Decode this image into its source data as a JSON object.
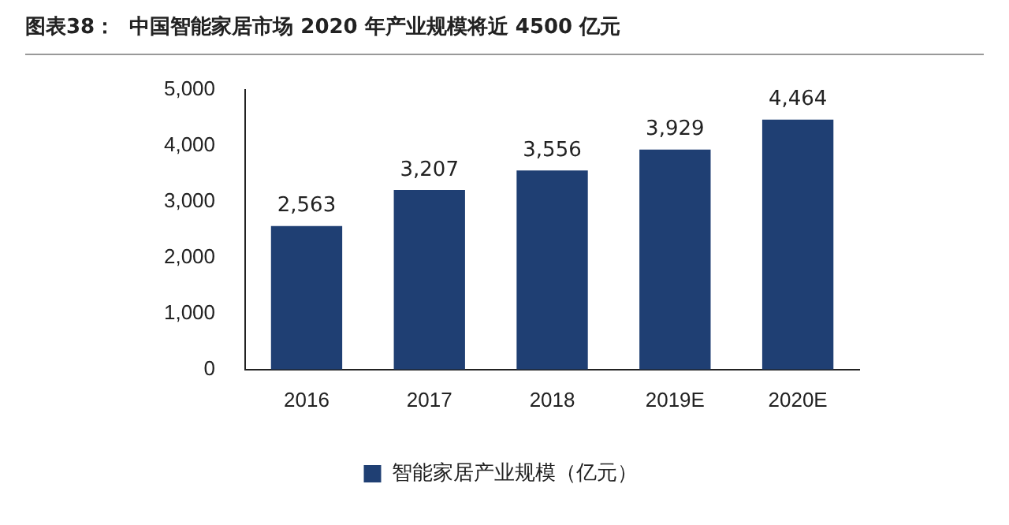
{
  "chart_data": {
    "type": "bar",
    "title": "图表38：  中国智能家居市场 2020 年产业规模将近 4500 亿元",
    "categories": [
      "2016",
      "2017",
      "2018",
      "2019E",
      "2020E"
    ],
    "series": [
      {
        "name": "智能家居产业规模（亿元）",
        "color": "#1f3f73",
        "values": [
          2563,
          3207,
          3556,
          3929,
          4464
        ],
        "value_labels": [
          "2,563",
          "3,207",
          "3,556",
          "3,929",
          "4,464"
        ]
      }
    ],
    "ylim": [
      0,
      5000
    ],
    "yticks": [
      {
        "value": 0,
        "label": "0"
      },
      {
        "value": 1000,
        "label": "1,000"
      },
      {
        "value": 2000,
        "label": "2,000"
      },
      {
        "value": 3000,
        "label": "3,000"
      },
      {
        "value": 4000,
        "label": "4,000"
      },
      {
        "value": 5000,
        "label": "5,000"
      }
    ],
    "grid": false,
    "legend": "bottom"
  }
}
